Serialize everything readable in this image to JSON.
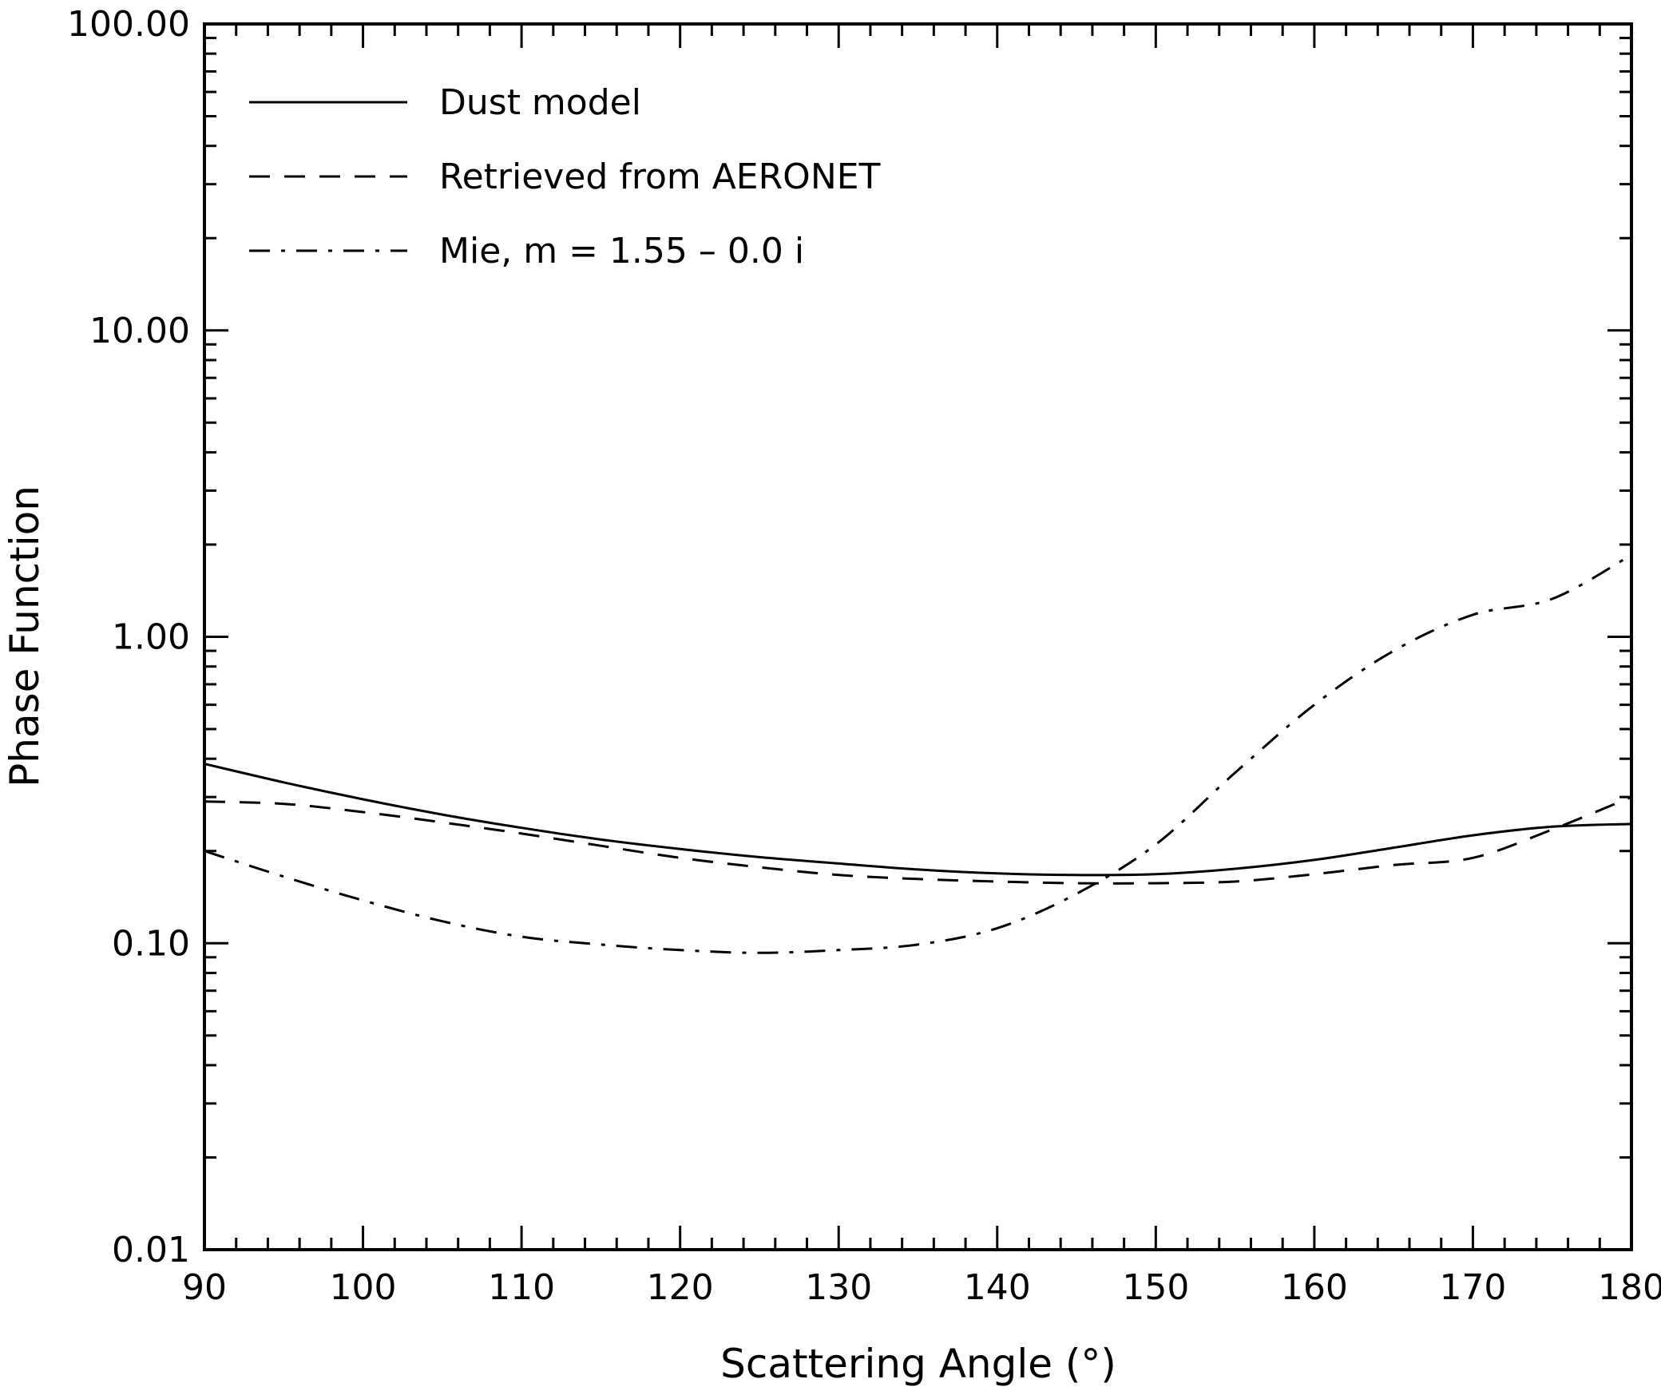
{
  "chart_data": {
    "type": "line",
    "xlabel": "Scattering Angle (°)",
    "ylabel": "Phase Function",
    "xlim": [
      90,
      180
    ],
    "ylim": [
      0.01,
      100
    ],
    "yscale": "log",
    "x_ticks": [
      90,
      100,
      110,
      120,
      130,
      140,
      150,
      160,
      170,
      180
    ],
    "x_tick_labels": [
      "90",
      "100",
      "110",
      "120",
      "130",
      "140",
      "150",
      "160",
      "170",
      "180"
    ],
    "y_ticks": [
      0.01,
      0.1,
      1,
      10,
      100
    ],
    "y_tick_labels": [
      "0.01",
      "0.10",
      "1.00",
      "10.00",
      "100.00"
    ],
    "grid": false,
    "legend_position": "top-left",
    "series": [
      {
        "name": "Dust model",
        "dash": "solid",
        "x": [
          90,
          95,
          100,
          105,
          110,
          115,
          120,
          125,
          130,
          135,
          140,
          145,
          150,
          155,
          160,
          165,
          170,
          175,
          180
        ],
        "y": [
          0.385,
          0.335,
          0.295,
          0.263,
          0.238,
          0.218,
          0.203,
          0.191,
          0.182,
          0.174,
          0.169,
          0.167,
          0.168,
          0.175,
          0.187,
          0.205,
          0.225,
          0.24,
          0.245
        ]
      },
      {
        "name": "Retrieved from AERONET",
        "dash": "dashed",
        "x": [
          90,
          95,
          100,
          105,
          110,
          115,
          120,
          125,
          130,
          135,
          140,
          145,
          150,
          155,
          160,
          165,
          170,
          175,
          180
        ],
        "y": [
          0.29,
          0.285,
          0.268,
          0.248,
          0.228,
          0.208,
          0.19,
          0.177,
          0.167,
          0.162,
          0.159,
          0.157,
          0.157,
          0.159,
          0.168,
          0.18,
          0.19,
          0.235,
          0.3
        ]
      },
      {
        "name": "Mie, m = 1.55 – 0.0 i",
        "dash": "dashdot",
        "x": [
          90,
          95,
          100,
          105,
          110,
          115,
          120,
          125,
          130,
          135,
          140,
          145,
          150,
          155,
          160,
          165,
          170,
          175,
          180
        ],
        "y": [
          0.2,
          0.165,
          0.138,
          0.118,
          0.105,
          0.099,
          0.095,
          0.093,
          0.095,
          0.099,
          0.112,
          0.145,
          0.21,
          0.36,
          0.6,
          0.9,
          1.18,
          1.33,
          1.85
        ]
      }
    ]
  }
}
